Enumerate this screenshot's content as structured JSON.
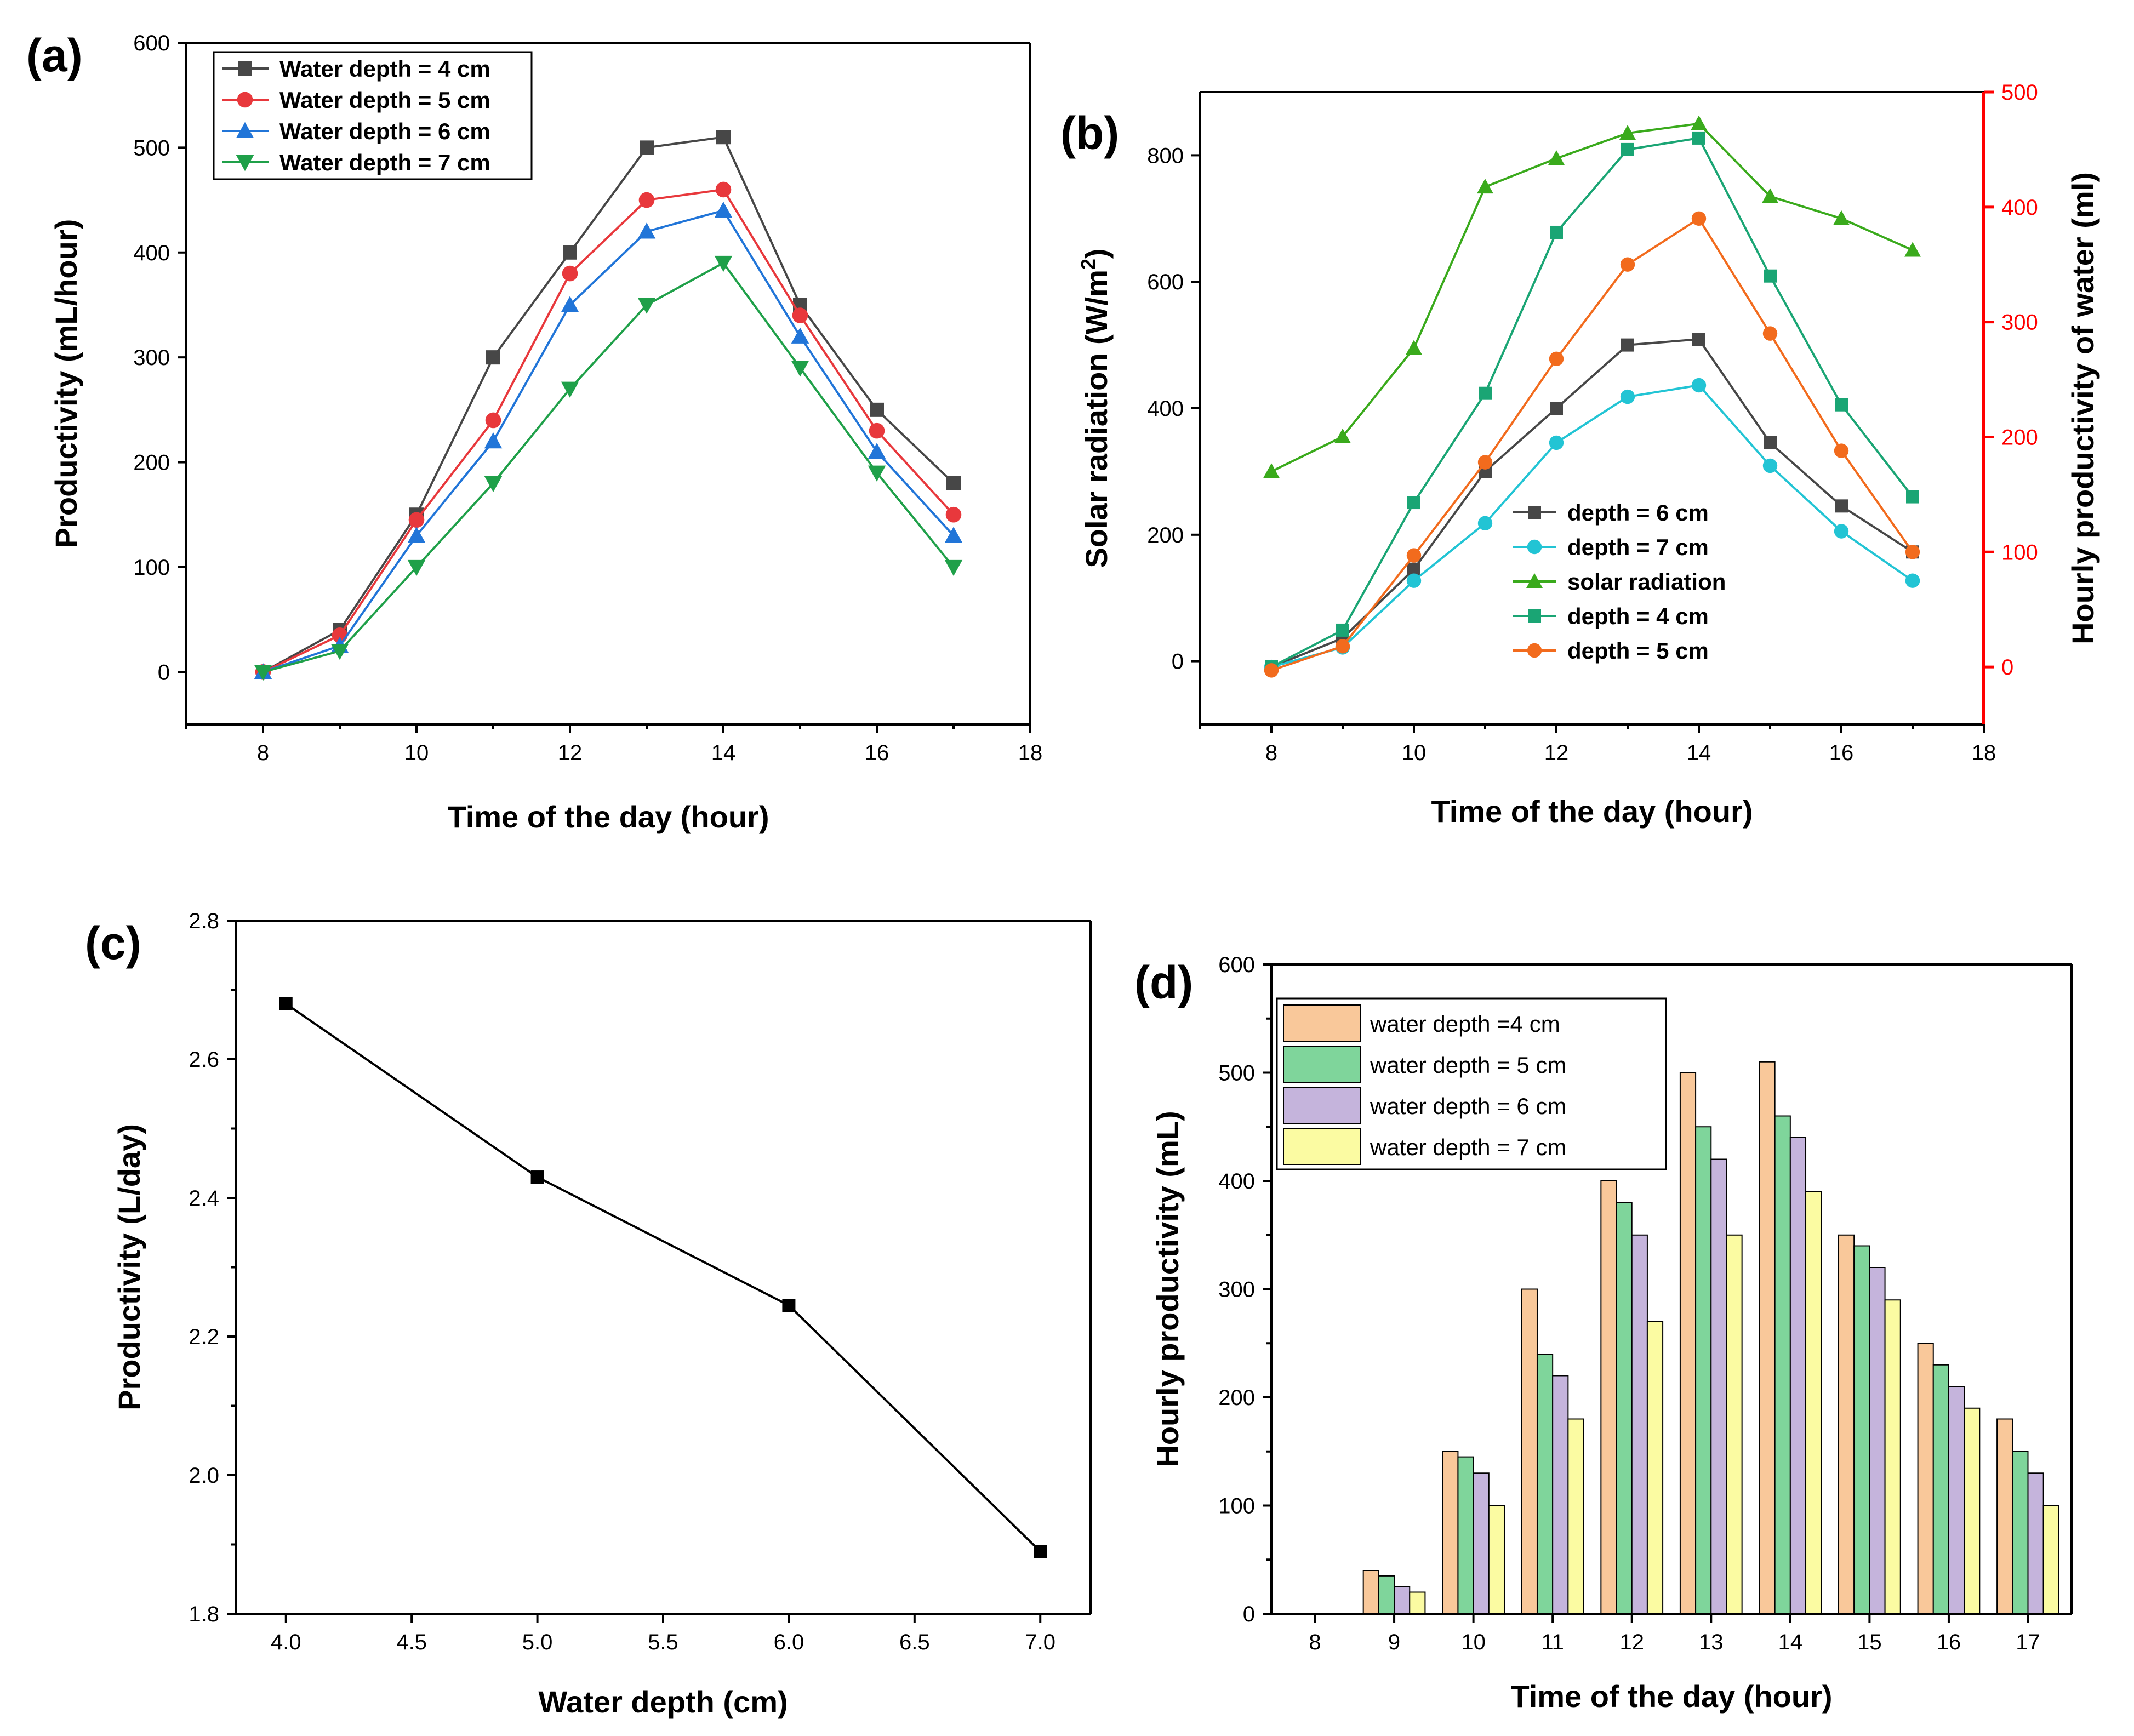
{
  "chart_data": [
    {
      "panel": "(a)",
      "type": "line",
      "xlabel": "Time of the day (hour)",
      "ylabel": "Productivity (mL/hour)",
      "xlim": [
        7,
        18
      ],
      "ylim": [
        -50,
        600
      ],
      "xticks": [
        8,
        10,
        12,
        14,
        16,
        18
      ],
      "yticks": [
        0,
        100,
        200,
        300,
        400,
        500,
        600
      ],
      "x": [
        8,
        9,
        10,
        11,
        12,
        13,
        14,
        15,
        16,
        17
      ],
      "legend_position": "top-left",
      "series": [
        {
          "name": "Water depth = 4 cm",
          "color": "#474747",
          "marker": "square",
          "values": [
            0,
            40,
            150,
            300,
            400,
            500,
            510,
            350,
            250,
            180
          ]
        },
        {
          "name": "Water depth = 5 cm",
          "color": "#e8383c",
          "marker": "circle",
          "values": [
            0,
            35,
            145,
            240,
            380,
            450,
            460,
            340,
            230,
            150
          ]
        },
        {
          "name": "Water depth = 6 cm",
          "color": "#2175d8",
          "marker": "triangle-up",
          "values": [
            0,
            25,
            130,
            220,
            350,
            420,
            440,
            320,
            210,
            130
          ]
        },
        {
          "name": "Water depth = 7 cm",
          "color": "#1fa049",
          "marker": "triangle-down",
          "values": [
            0,
            20,
            100,
            180,
            270,
            350,
            390,
            290,
            190,
            100
          ]
        }
      ]
    },
    {
      "panel": "(b)",
      "type": "line",
      "xlabel": "Time of the day (hour)",
      "ylabel_left_main": "Solar radiation (W/m",
      "ylabel_left_sup": "2",
      "ylabel_left_close": ")",
      "ylabel_right": "Hourly productivity of water (ml)",
      "xlim": [
        7,
        18
      ],
      "ylim_left": [
        -100,
        900
      ],
      "ylim_right": [
        -50,
        500
      ],
      "xticks": [
        8,
        10,
        12,
        14,
        16,
        18
      ],
      "yticks_left": [
        0,
        200,
        400,
        600,
        800
      ],
      "yticks_right": [
        0,
        100,
        200,
        300,
        400,
        500
      ],
      "x": [
        8,
        9,
        10,
        11,
        12,
        13,
        14,
        15,
        16,
        17
      ],
      "legend_position": "bottom-center",
      "series": [
        {
          "name": "depth = 6 cm",
          "axis": "right",
          "color": "#474747",
          "marker": "square",
          "values": [
            0,
            25,
            85,
            170,
            225,
            280,
            285,
            195,
            140,
            100
          ]
        },
        {
          "name": "depth = 7 cm",
          "axis": "right",
          "color": "#22c4d4",
          "marker": "circle",
          "values": [
            0,
            17,
            75,
            125,
            195,
            235,
            245,
            175,
            118,
            75
          ]
        },
        {
          "name": "solar radiation",
          "axis": "left",
          "color": "#3aaa1c",
          "marker": "triangle-up",
          "values": [
            300,
            355,
            495,
            750,
            795,
            835,
            850,
            735,
            700,
            650
          ]
        },
        {
          "name": "depth = 4 cm",
          "axis": "right",
          "color": "#1aa574",
          "marker": "square",
          "values": [
            0,
            32,
            143,
            238,
            378,
            450,
            460,
            340,
            228,
            148
          ]
        },
        {
          "name": "depth = 5 cm",
          "axis": "right",
          "color": "#f26b1d",
          "marker": "circle",
          "values": [
            -3,
            18,
            97,
            178,
            268,
            350,
            390,
            290,
            188,
            100
          ]
        }
      ]
    },
    {
      "panel": "(c)",
      "type": "line",
      "xlabel": "Water depth (cm)",
      "ylabel": "Productivity (L/day)",
      "xlim": [
        3.8,
        7.2
      ],
      "ylim": [
        1.8,
        2.8
      ],
      "xticks": [
        "4.0",
        "4.5",
        "5.0",
        "5.5",
        "6.0",
        "6.5",
        "7.0"
      ],
      "yticks": [
        "1.8",
        "2.0",
        "2.2",
        "2.4",
        "2.6",
        "2.8"
      ],
      "x": [
        4.0,
        5.0,
        6.0,
        7.0
      ],
      "series": [
        {
          "name": "Productivity",
          "color": "#000000",
          "marker": "square",
          "values": [
            2.68,
            2.43,
            2.245,
            1.89
          ]
        }
      ]
    },
    {
      "panel": "(d)",
      "type": "bar",
      "xlabel": "Time of the day (hour)",
      "ylabel": "Hourly productivity (mL)",
      "ylim": [
        0,
        600
      ],
      "yticks": [
        0,
        100,
        200,
        300,
        400,
        500,
        600
      ],
      "categories": [
        "8",
        "9",
        "10",
        "11",
        "12",
        "13",
        "14",
        "15",
        "16",
        "17"
      ],
      "legend_position": "top-left",
      "series": [
        {
          "name": "water depth =4 cm",
          "color": "#f9c89a",
          "values": [
            0,
            40,
            150,
            300,
            400,
            500,
            510,
            350,
            250,
            180
          ]
        },
        {
          "name": "water depth = 5 cm",
          "color": "#7fd59b",
          "values": [
            0,
            35,
            145,
            240,
            380,
            450,
            460,
            340,
            230,
            150
          ]
        },
        {
          "name": "water depth = 6 cm",
          "color": "#c5b4dc",
          "values": [
            0,
            25,
            130,
            220,
            350,
            420,
            440,
            320,
            210,
            130
          ]
        },
        {
          "name": "water depth = 7 cm",
          "color": "#fbfba2",
          "values": [
            0,
            20,
            100,
            180,
            270,
            350,
            390,
            290,
            190,
            100
          ]
        }
      ]
    }
  ]
}
